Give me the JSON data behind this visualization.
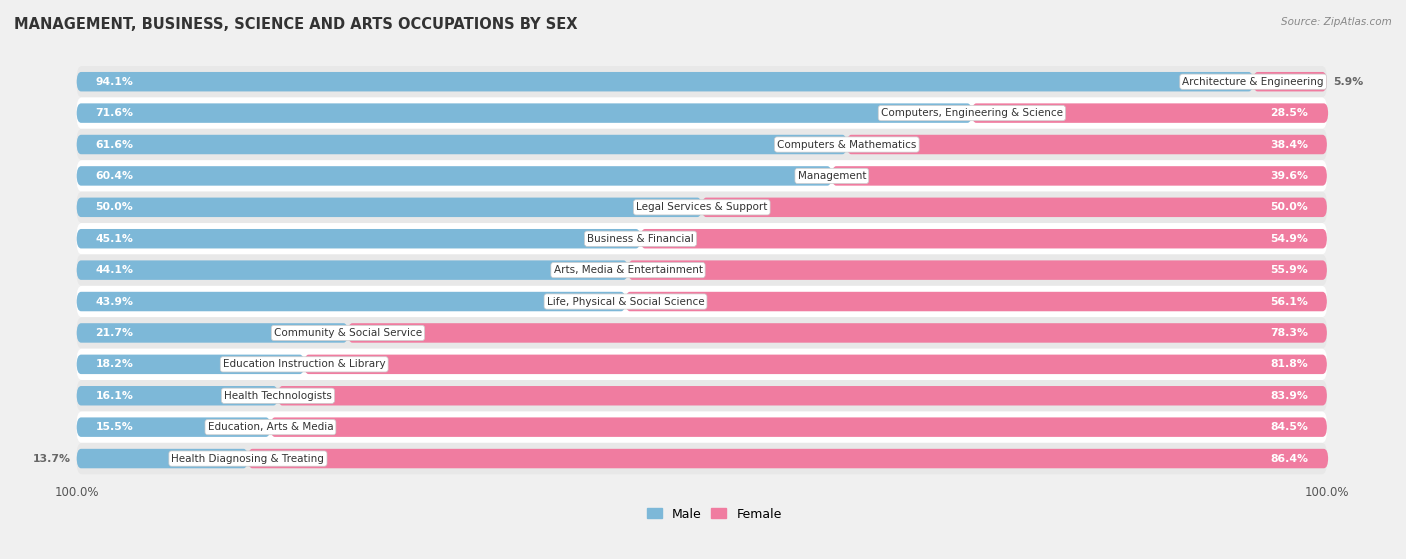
{
  "title": "MANAGEMENT, BUSINESS, SCIENCE AND ARTS OCCUPATIONS BY SEX",
  "source": "Source: ZipAtlas.com",
  "categories": [
    "Architecture & Engineering",
    "Computers, Engineering & Science",
    "Computers & Mathematics",
    "Management",
    "Legal Services & Support",
    "Business & Financial",
    "Arts, Media & Entertainment",
    "Life, Physical & Social Science",
    "Community & Social Service",
    "Education Instruction & Library",
    "Health Technologists",
    "Education, Arts & Media",
    "Health Diagnosing & Treating"
  ],
  "male_pct": [
    94.1,
    71.6,
    61.6,
    60.4,
    50.0,
    45.1,
    44.1,
    43.9,
    21.7,
    18.2,
    16.1,
    15.5,
    13.7
  ],
  "female_pct": [
    5.9,
    28.5,
    38.4,
    39.6,
    50.0,
    54.9,
    55.9,
    56.1,
    78.3,
    81.8,
    83.9,
    84.5,
    86.4
  ],
  "male_color": "#7db8d8",
  "female_color": "#f07ca0",
  "bg_color": "#f0f0f0",
  "row_colors": [
    "#e8e8e8",
    "#ffffff"
  ],
  "male_inside_threshold": 10,
  "female_inside_threshold": 10,
  "bar_height": 0.62,
  "legend_male": "Male",
  "legend_female": "Female"
}
